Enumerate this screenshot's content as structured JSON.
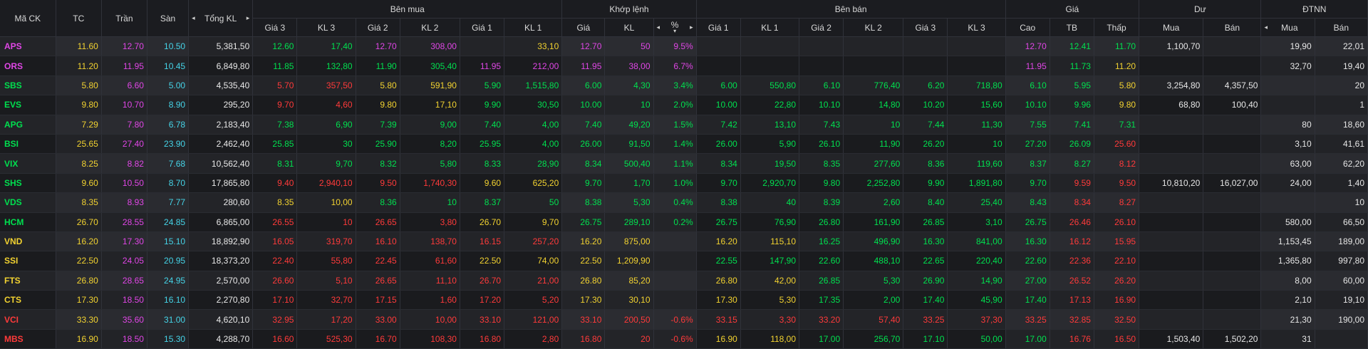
{
  "headers": {
    "symbol": "Mã CK",
    "ref": "TC",
    "ceil": "Trần",
    "floor": "Sàn",
    "total_vol": "Tổng KL",
    "buy_group": "Bên mua",
    "match_group": "Khớp lệnh",
    "sell_group": "Bên bán",
    "price_group": "Giá",
    "residual_group": "Dư",
    "foreign_group": "ĐTNN",
    "buy_cols": [
      "Giá 3",
      "KL 3",
      "Giá 2",
      "KL 2",
      "Giá 1",
      "KL 1"
    ],
    "match_cols": [
      "Giá",
      "KL",
      "%"
    ],
    "sell_cols": [
      "Giá 1",
      "KL 1",
      "Giá 2",
      "KL 2",
      "Giá 3",
      "KL 3"
    ],
    "price_cols": [
      "Cao",
      "TB",
      "Thấp"
    ],
    "residual_cols": [
      "Mua",
      "Bán"
    ],
    "foreign_cols": [
      "Mua",
      "Bán"
    ]
  },
  "icons": {
    "left": "◂",
    "right": "▸",
    "sort_up": "▴",
    "sort_down": "▾"
  },
  "colors": {
    "up": "#00e04f",
    "down": "#ff3a3a",
    "ref": "#f2d230",
    "ceil": "#e046e6",
    "floor": "#45d4e8"
  },
  "rows": [
    {
      "sym": "APS",
      "symc": "ceil",
      "tc": "11.60",
      "tran": "12.70",
      "san": "10.50",
      "tkl": "5,381,50",
      "b": [
        "12.60",
        "17,40",
        "12.70",
        "308,00",
        "",
        "33,10"
      ],
      "bc": [
        "up",
        "up",
        "ceil",
        "ceil",
        "",
        "ref"
      ],
      "m": [
        "12.70",
        "50",
        "9.5%"
      ],
      "mc": "ceil",
      "s": [
        "",
        "",
        "",
        "",
        "",
        ""
      ],
      "sc": [
        "",
        "",
        "",
        "",
        "",
        ""
      ],
      "p": [
        "12.70",
        "12.41",
        "11.70"
      ],
      "pc": [
        "ceil",
        "up",
        "up"
      ],
      "du": [
        "1,100,70",
        ""
      ],
      "fn": [
        "19,90",
        "22,01"
      ]
    },
    {
      "sym": "ORS",
      "symc": "ceil",
      "tc": "11.20",
      "tran": "11.95",
      "san": "10.45",
      "tkl": "6,849,80",
      "b": [
        "11.85",
        "132,80",
        "11.90",
        "305,40",
        "11.95",
        "212,00"
      ],
      "bc": [
        "up",
        "up",
        "up",
        "up",
        "ceil",
        "ceil"
      ],
      "m": [
        "11.95",
        "38,00",
        "6.7%"
      ],
      "mc": "ceil",
      "s": [
        "",
        "",
        "",
        "",
        "",
        ""
      ],
      "sc": [
        "",
        "",
        "",
        "",
        "",
        ""
      ],
      "p": [
        "11.95",
        "11.73",
        "11.20"
      ],
      "pc": [
        "ceil",
        "up",
        "ref"
      ],
      "du": [
        "",
        ""
      ],
      "fn": [
        "32,70",
        "19,40"
      ]
    },
    {
      "sym": "SBS",
      "symc": "up",
      "tc": "5.80",
      "tran": "6.60",
      "san": "5.00",
      "tkl": "4,535,40",
      "b": [
        "5.70",
        "357,50",
        "5.80",
        "591,90",
        "5.90",
        "1,515,80"
      ],
      "bc": [
        "down",
        "down",
        "ref",
        "ref",
        "up",
        "up"
      ],
      "m": [
        "6.00",
        "4,30",
        "3.4%"
      ],
      "mc": "up",
      "s": [
        "6.00",
        "550,80",
        "6.10",
        "776,40",
        "6.20",
        "718,80"
      ],
      "sc": [
        "up",
        "up",
        "up",
        "up",
        "up",
        "up"
      ],
      "p": [
        "6.10",
        "5.95",
        "5.80"
      ],
      "pc": [
        "up",
        "up",
        "ref"
      ],
      "du": [
        "3,254,80",
        "4,357,50"
      ],
      "fn": [
        "",
        "20"
      ]
    },
    {
      "sym": "EVS",
      "symc": "up",
      "tc": "9.80",
      "tran": "10.70",
      "san": "8.90",
      "tkl": "295,20",
      "b": [
        "9.70",
        "4,60",
        "9.80",
        "17,10",
        "9.90",
        "30,50"
      ],
      "bc": [
        "down",
        "down",
        "ref",
        "ref",
        "up",
        "up"
      ],
      "m": [
        "10.00",
        "10",
        "2.0%"
      ],
      "mc": "up",
      "s": [
        "10.00",
        "22,80",
        "10.10",
        "14,80",
        "10.20",
        "15,60"
      ],
      "sc": [
        "up",
        "up",
        "up",
        "up",
        "up",
        "up"
      ],
      "p": [
        "10.10",
        "9.96",
        "9.80"
      ],
      "pc": [
        "up",
        "up",
        "ref"
      ],
      "du": [
        "68,80",
        "100,40"
      ],
      "fn": [
        "",
        "1"
      ]
    },
    {
      "sym": "APG",
      "symc": "up",
      "tc": "7.29",
      "tran": "7.80",
      "san": "6.78",
      "tkl": "2,183,40",
      "b": [
        "7.38",
        "6,90",
        "7.39",
        "9,00",
        "7.40",
        "4,00"
      ],
      "bc": [
        "up",
        "up",
        "up",
        "up",
        "up",
        "up"
      ],
      "m": [
        "7.40",
        "49,20",
        "1.5%"
      ],
      "mc": "up",
      "s": [
        "7.42",
        "13,10",
        "7.43",
        "10",
        "7.44",
        "11,30"
      ],
      "sc": [
        "up",
        "up",
        "up",
        "up",
        "up",
        "up"
      ],
      "p": [
        "7.55",
        "7.41",
        "7.31"
      ],
      "pc": [
        "up",
        "up",
        "up"
      ],
      "du": [
        "",
        ""
      ],
      "fn": [
        "80",
        "18,60"
      ]
    },
    {
      "sym": "BSI",
      "symc": "up",
      "tc": "25.65",
      "tran": "27.40",
      "san": "23.90",
      "tkl": "2,462,40",
      "b": [
        "25.85",
        "30",
        "25.90",
        "8,20",
        "25.95",
        "4,00"
      ],
      "bc": [
        "up",
        "up",
        "up",
        "up",
        "up",
        "up"
      ],
      "m": [
        "26.00",
        "91,50",
        "1.4%"
      ],
      "mc": "up",
      "s": [
        "26.00",
        "5,90",
        "26.10",
        "11,90",
        "26.20",
        "10"
      ],
      "sc": [
        "up",
        "up",
        "up",
        "up",
        "up",
        "up"
      ],
      "p": [
        "27.20",
        "26.09",
        "25.60"
      ],
      "pc": [
        "up",
        "up",
        "down"
      ],
      "du": [
        "",
        ""
      ],
      "fn": [
        "3,10",
        "41,61"
      ]
    },
    {
      "sym": "VIX",
      "symc": "up",
      "tc": "8.25",
      "tran": "8.82",
      "san": "7.68",
      "tkl": "10,562,40",
      "b": [
        "8.31",
        "9,70",
        "8.32",
        "5,80",
        "8.33",
        "28,90"
      ],
      "bc": [
        "up",
        "up",
        "up",
        "up",
        "up",
        "up"
      ],
      "m": [
        "8.34",
        "500,40",
        "1.1%"
      ],
      "mc": "up",
      "s": [
        "8.34",
        "19,50",
        "8.35",
        "277,60",
        "8.36",
        "119,60"
      ],
      "sc": [
        "up",
        "up",
        "up",
        "up",
        "up",
        "up"
      ],
      "p": [
        "8.37",
        "8.27",
        "8.12"
      ],
      "pc": [
        "up",
        "up",
        "down"
      ],
      "du": [
        "",
        ""
      ],
      "fn": [
        "63,00",
        "62,20"
      ]
    },
    {
      "sym": "SHS",
      "symc": "up",
      "tc": "9.60",
      "tran": "10.50",
      "san": "8.70",
      "tkl": "17,865,80",
      "b": [
        "9.40",
        "2,940,10",
        "9.50",
        "1,740,30",
        "9.60",
        "625,20"
      ],
      "bc": [
        "down",
        "down",
        "down",
        "down",
        "ref",
        "ref"
      ],
      "m": [
        "9.70",
        "1,70",
        "1.0%"
      ],
      "mc": "up",
      "s": [
        "9.70",
        "2,920,70",
        "9.80",
        "2,252,80",
        "9.90",
        "1,891,80"
      ],
      "sc": [
        "up",
        "up",
        "up",
        "up",
        "up",
        "up"
      ],
      "p": [
        "9.70",
        "9.59",
        "9.50"
      ],
      "pc": [
        "up",
        "down",
        "down"
      ],
      "du": [
        "10,810,20",
        "16,027,00"
      ],
      "fn": [
        "24,00",
        "1,40"
      ]
    },
    {
      "sym": "VDS",
      "symc": "up",
      "tc": "8.35",
      "tran": "8.93",
      "san": "7.77",
      "tkl": "280,60",
      "b": [
        "8.35",
        "10,00",
        "8.36",
        "10",
        "8.37",
        "50"
      ],
      "bc": [
        "ref",
        "ref",
        "up",
        "up",
        "up",
        "up"
      ],
      "m": [
        "8.38",
        "5,30",
        "0.4%"
      ],
      "mc": "up",
      "s": [
        "8.38",
        "40",
        "8.39",
        "2,60",
        "8.40",
        "25,40"
      ],
      "sc": [
        "up",
        "up",
        "up",
        "up",
        "up",
        "up"
      ],
      "p": [
        "8.43",
        "8.34",
        "8.27"
      ],
      "pc": [
        "up",
        "down",
        "down"
      ],
      "du": [
        "",
        ""
      ],
      "fn": [
        "",
        "10"
      ]
    },
    {
      "sym": "HCM",
      "symc": "up",
      "tc": "26.70",
      "tran": "28.55",
      "san": "24.85",
      "tkl": "6,865,00",
      "b": [
        "26.55",
        "10",
        "26.65",
        "3,80",
        "26.70",
        "9,70"
      ],
      "bc": [
        "down",
        "down",
        "down",
        "down",
        "ref",
        "ref"
      ],
      "m": [
        "26.75",
        "289,10",
        "0.2%"
      ],
      "mc": "up",
      "s": [
        "26.75",
        "76,90",
        "26.80",
        "161,90",
        "26.85",
        "3,10"
      ],
      "sc": [
        "up",
        "up",
        "up",
        "up",
        "up",
        "up"
      ],
      "p": [
        "26.75",
        "26.46",
        "26.10"
      ],
      "pc": [
        "up",
        "down",
        "down"
      ],
      "du": [
        "",
        ""
      ],
      "fn": [
        "580,00",
        "66,50"
      ]
    },
    {
      "sym": "VND",
      "symc": "ref",
      "tc": "16.20",
      "tran": "17.30",
      "san": "15.10",
      "tkl": "18,892,90",
      "b": [
        "16.05",
        "319,70",
        "16.10",
        "138,70",
        "16.15",
        "257,20"
      ],
      "bc": [
        "down",
        "down",
        "down",
        "down",
        "down",
        "down"
      ],
      "m": [
        "16.20",
        "875,00",
        ""
      ],
      "mc": "ref",
      "s": [
        "16.20",
        "115,10",
        "16.25",
        "496,90",
        "16.30",
        "841,00"
      ],
      "sc": [
        "ref",
        "ref",
        "up",
        "up",
        "up",
        "up"
      ],
      "p": [
        "16.30",
        "16.12",
        "15.95"
      ],
      "pc": [
        "up",
        "down",
        "down"
      ],
      "du": [
        "",
        ""
      ],
      "fn": [
        "1,153,45",
        "189,00"
      ]
    },
    {
      "sym": "SSI",
      "symc": "ref",
      "tc": "22.50",
      "tran": "24.05",
      "san": "20.95",
      "tkl": "18,373,20",
      "b": [
        "22.40",
        "55,80",
        "22.45",
        "61,60",
        "22.50",
        "74,00"
      ],
      "bc": [
        "down",
        "down",
        "down",
        "down",
        "ref",
        "ref"
      ],
      "m": [
        "22.50",
        "1,209,90",
        ""
      ],
      "mc": "ref",
      "s": [
        "22.55",
        "147,90",
        "22.60",
        "488,10",
        "22.65",
        "220,40"
      ],
      "sc": [
        "up",
        "up",
        "up",
        "up",
        "up",
        "up"
      ],
      "p": [
        "22.60",
        "22.36",
        "22.10"
      ],
      "pc": [
        "up",
        "down",
        "down"
      ],
      "du": [
        "",
        ""
      ],
      "fn": [
        "1,365,80",
        "997,80"
      ]
    },
    {
      "sym": "FTS",
      "symc": "ref",
      "tc": "26.80",
      "tran": "28.65",
      "san": "24.95",
      "tkl": "2,570,00",
      "b": [
        "26.60",
        "5,10",
        "26.65",
        "11,10",
        "26.70",
        "21,00"
      ],
      "bc": [
        "down",
        "down",
        "down",
        "down",
        "down",
        "down"
      ],
      "m": [
        "26.80",
        "85,20",
        ""
      ],
      "mc": "ref",
      "s": [
        "26.80",
        "42,00",
        "26.85",
        "5,30",
        "26.90",
        "14,90"
      ],
      "sc": [
        "ref",
        "ref",
        "up",
        "up",
        "up",
        "up"
      ],
      "p": [
        "27.00",
        "26.52",
        "26.20"
      ],
      "pc": [
        "up",
        "down",
        "down"
      ],
      "du": [
        "",
        ""
      ],
      "fn": [
        "8,00",
        "60,00"
      ]
    },
    {
      "sym": "CTS",
      "symc": "ref",
      "tc": "17.30",
      "tran": "18.50",
      "san": "16.10",
      "tkl": "2,270,80",
      "b": [
        "17.10",
        "32,70",
        "17.15",
        "1,60",
        "17.20",
        "5,20"
      ],
      "bc": [
        "down",
        "down",
        "down",
        "down",
        "down",
        "down"
      ],
      "m": [
        "17.30",
        "30,10",
        ""
      ],
      "mc": "ref",
      "s": [
        "17.30",
        "5,30",
        "17.35",
        "2,00",
        "17.40",
        "45,90"
      ],
      "sc": [
        "ref",
        "ref",
        "up",
        "up",
        "up",
        "up"
      ],
      "p": [
        "17.40",
        "17.13",
        "16.90"
      ],
      "pc": [
        "up",
        "down",
        "down"
      ],
      "du": [
        "",
        ""
      ],
      "fn": [
        "2,10",
        "19,10"
      ]
    },
    {
      "sym": "VCI",
      "symc": "down",
      "tc": "33.30",
      "tran": "35.60",
      "san": "31.00",
      "tkl": "4,620,10",
      "b": [
        "32.95",
        "17,20",
        "33.00",
        "10,00",
        "33.10",
        "121,00"
      ],
      "bc": [
        "down",
        "down",
        "down",
        "down",
        "down",
        "down"
      ],
      "m": [
        "33.10",
        "200,50",
        "-0.6%"
      ],
      "mc": "down",
      "s": [
        "33.15",
        "3,30",
        "33.20",
        "57,40",
        "33.25",
        "37,30"
      ],
      "sc": [
        "down",
        "down",
        "down",
        "down",
        "down",
        "down"
      ],
      "p": [
        "33.25",
        "32.85",
        "32.50"
      ],
      "pc": [
        "down",
        "down",
        "down"
      ],
      "du": [
        "",
        ""
      ],
      "fn": [
        "21,30",
        "190,00"
      ]
    },
    {
      "sym": "MBS",
      "symc": "down",
      "tc": "16.90",
      "tran": "18.50",
      "san": "15.30",
      "tkl": "4,288,70",
      "b": [
        "16.60",
        "525,30",
        "16.70",
        "108,30",
        "16.80",
        "2,80"
      ],
      "bc": [
        "down",
        "down",
        "down",
        "down",
        "down",
        "down"
      ],
      "m": [
        "16.80",
        "20",
        "-0.6%"
      ],
      "mc": "down",
      "s": [
        "16.90",
        "118,00",
        "17.00",
        "256,70",
        "17.10",
        "50,00"
      ],
      "sc": [
        "ref",
        "ref",
        "up",
        "up",
        "up",
        "up"
      ],
      "p": [
        "17.00",
        "16.76",
        "16.50"
      ],
      "pc": [
        "up",
        "down",
        "down"
      ],
      "du": [
        "1,503,40",
        "1,502,20"
      ],
      "fn": [
        "31",
        ""
      ]
    }
  ]
}
